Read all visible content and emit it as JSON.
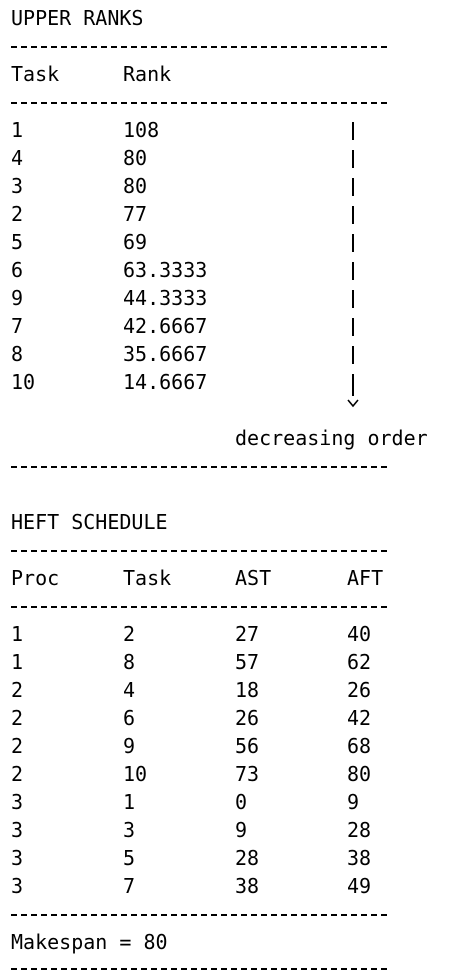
{
  "upper_ranks": {
    "title": "UPPER RANKS",
    "headers": [
      "Task",
      "Rank"
    ],
    "rows": [
      {
        "task": "1",
        "rank": "108"
      },
      {
        "task": "4",
        "rank": "80"
      },
      {
        "task": "3",
        "rank": "80"
      },
      {
        "task": "2",
        "rank": "77"
      },
      {
        "task": "5",
        "rank": "69"
      },
      {
        "task": "6",
        "rank": "63.3333"
      },
      {
        "task": "9",
        "rank": "44.3333"
      },
      {
        "task": "7",
        "rank": "42.6667"
      },
      {
        "task": "8",
        "rank": "35.6667"
      },
      {
        "task": "10",
        "rank": "14.6667"
      }
    ],
    "order_label": "decreasing order",
    "arrow_icon": "down-arrow-icon"
  },
  "heft_schedule": {
    "title": "HEFT SCHEDULE",
    "headers": [
      "Proc",
      "Task",
      "AST",
      "AFT"
    ],
    "rows": [
      {
        "proc": "1",
        "task": "2",
        "ast": "27",
        "aft": "40"
      },
      {
        "proc": "1",
        "task": "8",
        "ast": "57",
        "aft": "62"
      },
      {
        "proc": "2",
        "task": "4",
        "ast": "18",
        "aft": "26"
      },
      {
        "proc": "2",
        "task": "6",
        "ast": "26",
        "aft": "42"
      },
      {
        "proc": "2",
        "task": "9",
        "ast": "56",
        "aft": "68"
      },
      {
        "proc": "2",
        "task": "10",
        "ast": "73",
        "aft": "80"
      },
      {
        "proc": "3",
        "task": "1",
        "ast": "0",
        "aft": "9"
      },
      {
        "proc": "3",
        "task": "3",
        "ast": "9",
        "aft": "28"
      },
      {
        "proc": "3",
        "task": "5",
        "ast": "28",
        "aft": "38"
      },
      {
        "proc": "3",
        "task": "7",
        "ast": "38",
        "aft": "49"
      }
    ],
    "makespan": "Makespan = 80"
  }
}
